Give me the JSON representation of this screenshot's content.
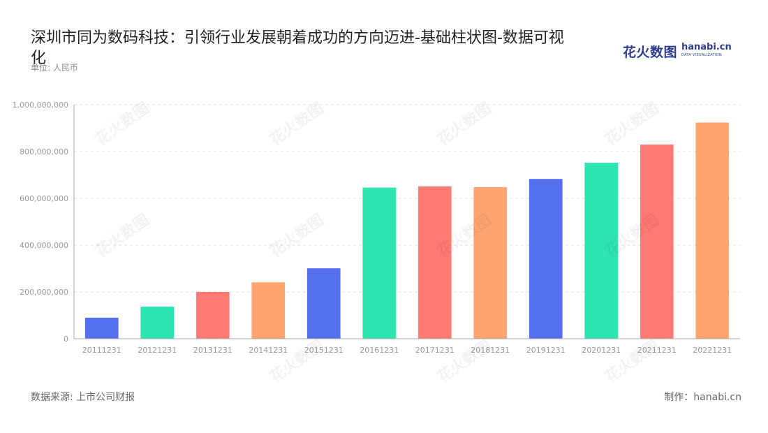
{
  "header": {
    "title": "深圳市同为数码科技：引领行业发展朝着成功的方向迈进-基础柱状图-数据可视化",
    "unit": "单位: 人民币"
  },
  "logo": {
    "cn": "花火数图",
    "en": "hanabi.cn",
    "sub": "DATA VISUALIZATION"
  },
  "footer": {
    "source": "数据来源: 上市公司财报",
    "credit": "制作：hanabi.cn"
  },
  "colors": {
    "palette": [
      "#5470ee",
      "#2ee5b0",
      "#ff7a72",
      "#ffa56f"
    ],
    "grid": "#dddddd",
    "axis": "#aaaaaa",
    "tick_text": "#999999"
  },
  "chart_data": {
    "type": "bar",
    "title": "",
    "xlabel": "",
    "ylabel": "",
    "categories": [
      "20111231",
      "20121231",
      "20131231",
      "20141231",
      "20151231",
      "20161231",
      "20171231",
      "20181231",
      "20191231",
      "20201231",
      "20211231",
      "20221231"
    ],
    "values": [
      90000000,
      137000000,
      200000000,
      241000000,
      301000000,
      646000000,
      651000000,
      648000000,
      683000000,
      752000000,
      830000000,
      924000000
    ],
    "ylim": [
      0,
      1000000000
    ],
    "yticks": [
      0,
      200000000,
      400000000,
      600000000,
      800000000,
      1000000000
    ],
    "ytick_labels": [
      "0",
      "200,000,000",
      "400,000,000",
      "600,000,000",
      "800,000,000",
      "1,000,000,000"
    ],
    "grid": true,
    "legend": "none"
  }
}
